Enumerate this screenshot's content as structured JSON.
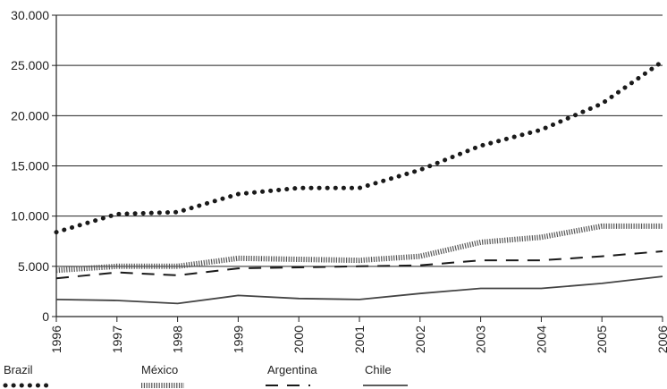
{
  "chart_data": {
    "type": "line",
    "x": [
      "1996",
      "1997",
      "1998",
      "1999",
      "2000",
      "2001",
      "2002",
      "2003",
      "2004",
      "2005",
      "2006"
    ],
    "ylim": [
      0,
      30000
    ],
    "yticks": [
      0,
      5000,
      10000,
      15000,
      20000,
      25000,
      30000
    ],
    "ytick_labels": [
      "0",
      "5.000",
      "10.000",
      "15.000",
      "20.000",
      "25.000",
      "30.000"
    ],
    "grid": true,
    "legend_position": "bottom",
    "series": [
      {
        "name": "Brazil",
        "style": "dotted",
        "color": "#1a1a1a",
        "values": [
          8400,
          10200,
          10400,
          12200,
          12800,
          12800,
          14600,
          17000,
          18600,
          21200,
          25400
        ]
      },
      {
        "name": "México",
        "style": "hatched",
        "color": "#555555",
        "values": [
          4600,
          5000,
          5000,
          5800,
          5700,
          5600,
          6000,
          7400,
          7900,
          9000,
          9000
        ]
      },
      {
        "name": "Argentina",
        "style": "dashed",
        "color": "#1a1a1a",
        "values": [
          3800,
          4400,
          4100,
          4800,
          4900,
          5000,
          5100,
          5600,
          5600,
          6000,
          6500
        ]
      },
      {
        "name": "Chile",
        "style": "solid",
        "color": "#444444",
        "values": [
          1700,
          1600,
          1300,
          2100,
          1800,
          1700,
          2300,
          2800,
          2800,
          3300,
          4000
        ]
      }
    ]
  }
}
